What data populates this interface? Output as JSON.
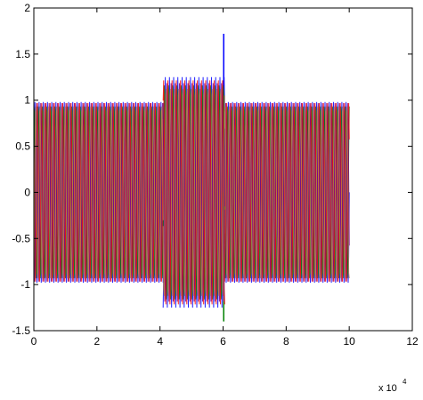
{
  "chart_data": {
    "type": "line",
    "title": "",
    "xlabel": "",
    "ylabel": "",
    "xlim": [
      0,
      12
    ],
    "ylim": [
      -1.5,
      2
    ],
    "x_ticks": [
      "0",
      "2",
      "4",
      "6",
      "8",
      "10",
      "12"
    ],
    "y_ticks": [
      "2",
      "1.5",
      "1",
      "0.5",
      "0",
      "-0.5",
      "-1",
      "-1.5"
    ],
    "x_multiplier_label": "x 10",
    "x_multiplier_exponent": "4",
    "grid": false,
    "legend": "none",
    "signal_description": "dense multi-phase oscillation; amplitude 1 over x=0..4.1 and 6.1..10 (x10^4), about 1.25 with phase disturbance over 4.1..6.1, spike near x=6.0",
    "series": [
      {
        "color": "#0000ff",
        "segments": [
          {
            "x": [
              0,
              4.1
            ],
            "amplitude": 0.98
          },
          {
            "x": [
              4.1,
              6.05
            ],
            "amplitude": 1.25
          },
          {
            "x": [
              6.05,
              10
            ],
            "amplitude": 0.98
          }
        ],
        "spike": {
          "x": 6.02,
          "y": 1.72
        }
      },
      {
        "color": "#008000",
        "segments": [
          {
            "x": [
              0,
              4.1
            ],
            "amplitude": 0.98
          },
          {
            "x": [
              4.1,
              6.05
            ],
            "amplitude": 1.22
          },
          {
            "x": [
              6.05,
              10
            ],
            "amplitude": 0.98
          }
        ],
        "spike": {
          "x": 6.02,
          "y": -1.4
        }
      },
      {
        "color": "#ff0000",
        "segments": [
          {
            "x": [
              0,
              4.1
            ],
            "amplitude": 0.98
          },
          {
            "x": [
              4.1,
              6.05
            ],
            "amplitude": 1.23
          },
          {
            "x": [
              6.05,
              10
            ],
            "amplitude": 0.98
          }
        ]
      },
      {
        "color": "#800080",
        "segments": [
          {
            "x": [
              0,
              4.1
            ],
            "amplitude": 0.98
          },
          {
            "x": [
              4.1,
              6.05
            ],
            "amplitude": 1.2
          },
          {
            "x": [
              6.05,
              10
            ],
            "amplitude": 0.98
          }
        ]
      },
      {
        "color": "#c08040",
        "segments": [
          {
            "x": [
              0,
              4.1
            ],
            "amplitude": 0.98
          },
          {
            "x": [
              4.1,
              6.05
            ],
            "amplitude": 1.18
          },
          {
            "x": [
              6.05,
              10
            ],
            "amplitude": 0.98
          }
        ]
      }
    ]
  }
}
